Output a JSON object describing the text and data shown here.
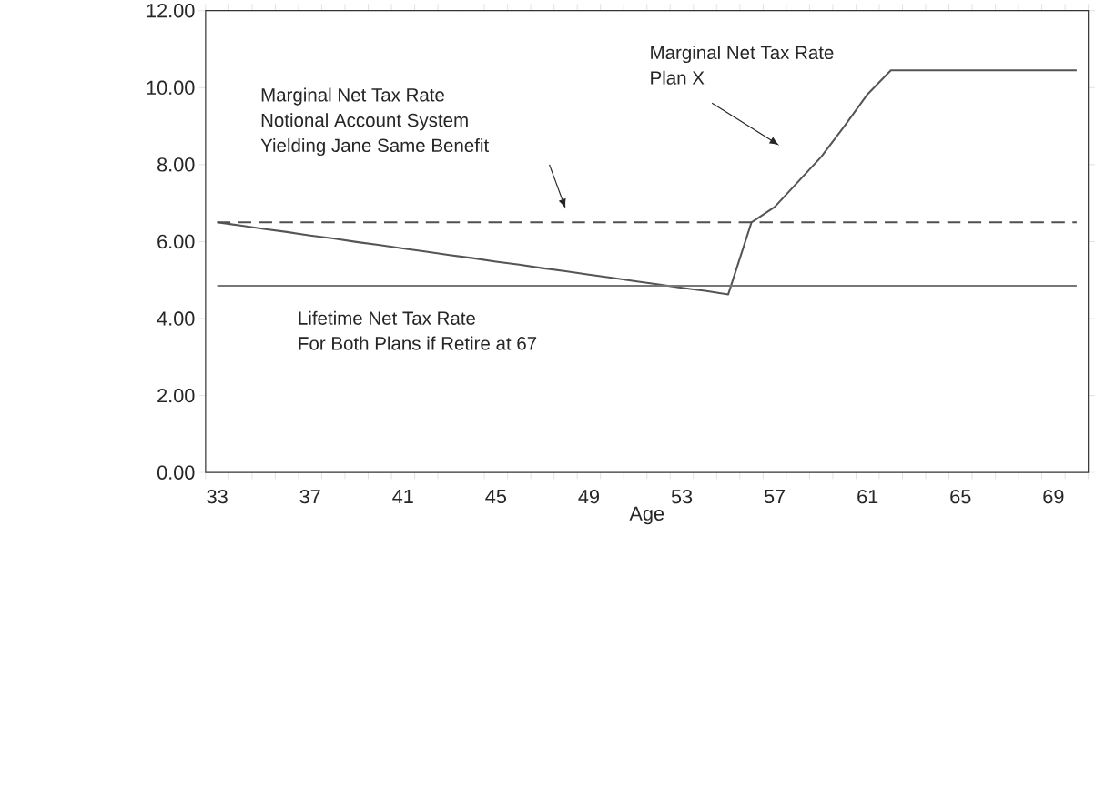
{
  "chart_data": {
    "type": "line",
    "xlabel": "Age",
    "categories": [
      "33",
      null,
      null,
      null,
      "37",
      null,
      null,
      null,
      "41",
      null,
      null,
      null,
      "45",
      null,
      null,
      null,
      "49",
      null,
      null,
      null,
      "53",
      null,
      null,
      null,
      "57",
      null,
      null,
      null,
      "61",
      null,
      null,
      null,
      "65",
      null,
      null,
      null,
      "69",
      null
    ],
    "series": [
      {
        "color": "#555555",
        "line_style": "solid",
        "values": [
          6.5,
          6.42,
          6.33,
          6.25,
          6.16,
          6.08,
          5.99,
          5.91,
          5.82,
          5.74,
          5.65,
          5.57,
          5.48,
          5.4,
          5.31,
          5.23,
          5.14,
          5.06,
          4.97,
          4.89,
          4.8,
          4.72,
          4.63,
          6.5,
          6.9,
          7.55,
          8.2,
          9.0,
          9.83,
          10.45,
          10.45,
          10.45,
          10.45,
          10.45,
          10.45,
          10.45,
          10.45,
          10.45
        ]
      },
      {
        "color": "#505050",
        "line_style": "dashed",
        "values": [
          6.5,
          6.5,
          6.5,
          6.5,
          6.5,
          6.5,
          6.5,
          6.5,
          6.5,
          6.5,
          6.5,
          6.5,
          6.5,
          6.5,
          6.5,
          6.5,
          6.5,
          6.5,
          6.5,
          6.5,
          6.5,
          6.5,
          6.5,
          6.5,
          6.5,
          6.5,
          6.5,
          6.5,
          6.5,
          6.5,
          6.5,
          6.5,
          6.5,
          6.5,
          6.5,
          6.5,
          6.5,
          6.5
        ]
      },
      {
        "color": "#777777",
        "line_style": "solid",
        "values": [
          4.85,
          4.85,
          4.85,
          4.85,
          4.85,
          4.85,
          4.85,
          4.85,
          4.85,
          4.85,
          4.85,
          4.85,
          4.85,
          4.85,
          4.85,
          4.85,
          4.85,
          4.85,
          4.85,
          4.85,
          4.85,
          4.85,
          4.85,
          4.85,
          4.85,
          4.85,
          4.85,
          4.85,
          4.85,
          4.85,
          4.85,
          4.85,
          4.85,
          4.85,
          4.85,
          4.85,
          4.85,
          4.85
        ]
      }
    ],
    "ylim": [
      0,
      12
    ],
    "yticks": [
      {
        "value": 0,
        "label": "0.00"
      },
      {
        "value": 2,
        "label": "2.00"
      },
      {
        "value": 4,
        "label": "4.00"
      },
      {
        "value": 6,
        "label": "6.00"
      },
      {
        "value": 8,
        "label": "8.00"
      },
      {
        "value": 10,
        "label": "10.00"
      },
      {
        "value": 12,
        "label": "12.00"
      }
    ],
    "annotations": [
      "Marginal Net Tax Rate",
      "Plan X",
      "Marginal Net Tax Rate",
      "Notional Account System",
      "Yielding Jane Same Benefit",
      "Lifetime Net Tax Rate",
      "For Both Plans if Retire at 67"
    ]
  }
}
